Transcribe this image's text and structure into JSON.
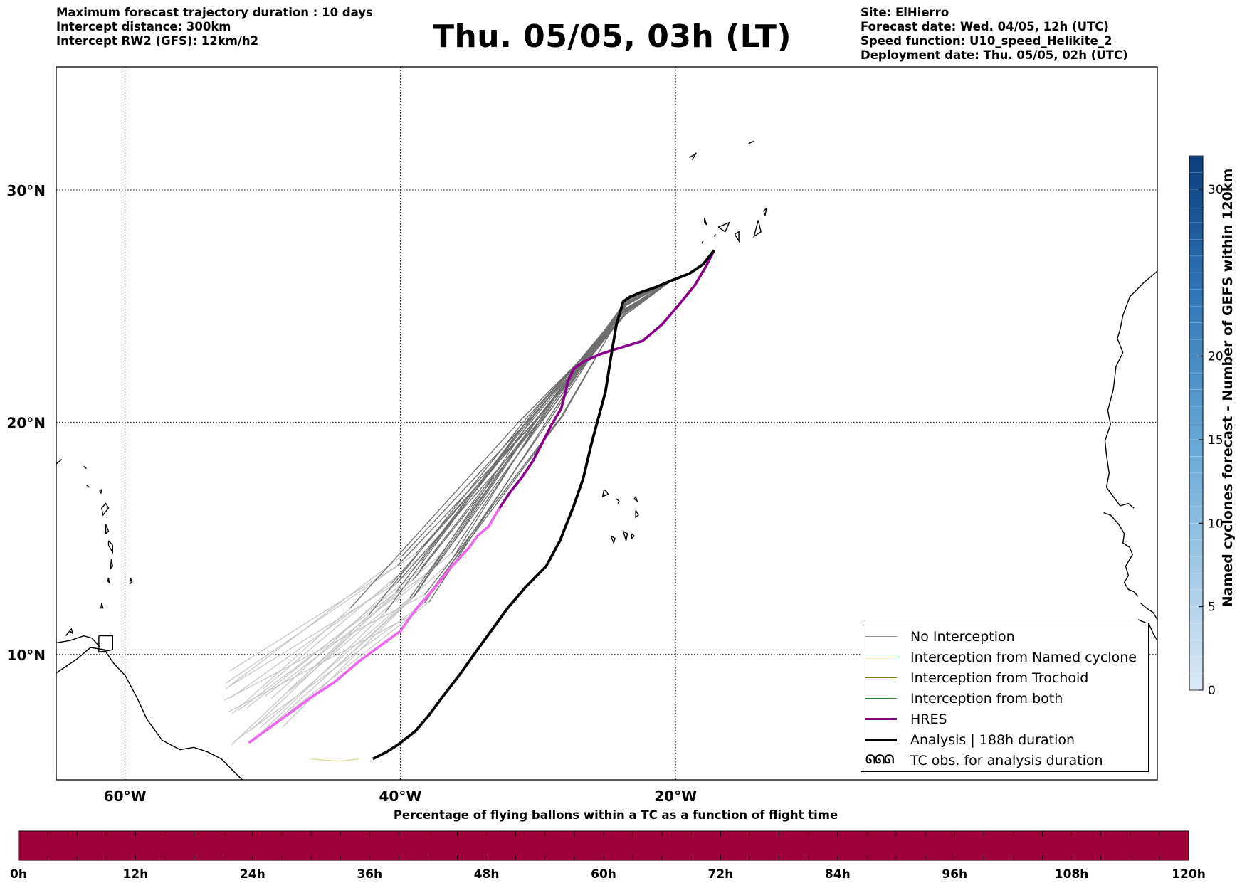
{
  "header_left": {
    "duration": "Maximum forecast trajectory duration : 10 days",
    "distance": "Intercept distance: 300km",
    "rw2": "Intercept RW2 (GFS):  12km/h2"
  },
  "title": "Thu. 05/05, 03h (LT)",
  "header_right": {
    "site": "Site: ElHierro",
    "forecast_date": "Forecast date: Wed. 04/05, 12h (UTC)",
    "speed_function": "Speed function: U10_speed_Helikite_2",
    "deployment_date": "Deployment date: Thu. 05/05, 02h (UTC)"
  },
  "map": {
    "lon_range": [
      -65,
      15
    ],
    "lat_range": [
      4.6,
      35.3
    ],
    "meridians": [
      -60,
      -40,
      -20
    ],
    "meridian_labels": [
      "60°W",
      "40°W",
      "20°W"
    ],
    "parallels": [
      30,
      20,
      10
    ],
    "parallel_labels": [
      "30°N",
      "20°N",
      "10°N"
    ],
    "grid": "dotted"
  },
  "tracks": {
    "ensemble_color": "#6e6e6e",
    "faded_color": "#c8c8c8",
    "hres_color": "#8b008b",
    "hres_faded_color": "#ee66ee",
    "analysis_color": "#000000",
    "analysis": [
      [
        -17.2,
        27.4
      ],
      [
        -18.0,
        26.8
      ],
      [
        -19.0,
        26.4
      ],
      [
        -20.3,
        26.1
      ],
      [
        -21.5,
        25.8
      ],
      [
        -22.5,
        25.6
      ],
      [
        -23.3,
        25.4
      ],
      [
        -23.8,
        25.2
      ],
      [
        -24.3,
        24.2
      ],
      [
        -24.7,
        22.8
      ],
      [
        -25.1,
        21.3
      ],
      [
        -25.6,
        20.2
      ],
      [
        -26.1,
        19.1
      ],
      [
        -26.7,
        17.6
      ],
      [
        -27.4,
        16.4
      ],
      [
        -28.4,
        14.9
      ],
      [
        -29.4,
        13.8
      ],
      [
        -30.9,
        12.9
      ],
      [
        -32.2,
        12.0
      ],
      [
        -33.3,
        11.1
      ],
      [
        -34.4,
        10.2
      ],
      [
        -35.6,
        9.2
      ],
      [
        -36.9,
        8.2
      ],
      [
        -37.9,
        7.4
      ],
      [
        -38.9,
        6.7
      ],
      [
        -40.2,
        6.1
      ],
      [
        -41.0,
        5.8
      ],
      [
        -42.0,
        5.5
      ]
    ],
    "hres": [
      [
        -17.2,
        27.4
      ],
      [
        -17.8,
        26.7
      ],
      [
        -18.6,
        25.9
      ],
      [
        -19.7,
        25.1
      ],
      [
        -21.0,
        24.2
      ],
      [
        -22.4,
        23.5
      ],
      [
        -23.5,
        23.3
      ],
      [
        -24.6,
        23.1
      ],
      [
        -25.6,
        22.9
      ],
      [
        -26.7,
        22.6
      ],
      [
        -27.4,
        22.3
      ],
      [
        -27.8,
        21.8
      ],
      [
        -28.3,
        20.6
      ],
      [
        -29.0,
        19.9
      ],
      [
        -29.6,
        19.2
      ],
      [
        -30.4,
        18.3
      ],
      [
        -31.2,
        17.6
      ],
      [
        -32.0,
        17.0
      ],
      [
        -32.8,
        16.3
      ],
      [
        -33.6,
        15.5
      ],
      [
        -34.4,
        15.1
      ],
      [
        -35.0,
        14.6
      ],
      [
        -36.4,
        13.7
      ],
      [
        -37.6,
        12.8
      ],
      [
        -38.8,
        12.0
      ],
      [
        -40.0,
        11.0
      ],
      [
        -41.4,
        10.4
      ],
      [
        -43.0,
        9.7
      ],
      [
        -44.8,
        8.8
      ],
      [
        -46.6,
        8.1
      ],
      [
        -48.2,
        7.4
      ],
      [
        -49.6,
        6.8
      ],
      [
        -51.0,
        6.2
      ]
    ]
  },
  "legend": {
    "items": [
      {
        "label": "No Interception",
        "color": "#8c8c8c",
        "width": 1.3,
        "kind": "line"
      },
      {
        "label": "Interception from Named cyclone",
        "color": "#e8532b",
        "width": 1.3,
        "kind": "line"
      },
      {
        "label": "Interception from Trochoid",
        "color": "#808000",
        "width": 1.3,
        "kind": "line"
      },
      {
        "label": "Interception from both",
        "color": "#2e8b2e",
        "width": 1.3,
        "kind": "line"
      },
      {
        "label": "HRES",
        "color": "#8b008b",
        "width": 3.5,
        "kind": "line"
      },
      {
        "label": "Analysis | 188h duration",
        "color": "#000000",
        "width": 3.5,
        "kind": "line"
      },
      {
        "label": "TC obs. for analysis duration",
        "color": "#000000",
        "width": 0,
        "kind": "tc",
        "symbol": "ᘏᘏᘏ"
      }
    ]
  },
  "colorbar": {
    "label": "Named cyclones forecast - Number of GEFS within 120km",
    "min": 0,
    "max": 32,
    "ticks": [
      0,
      5,
      10,
      15,
      20,
      30
    ],
    "tick_labels": [
      "0",
      "5",
      "10",
      "15",
      "20",
      "30"
    ],
    "color_low": "#dce9f6",
    "color_high": "#0b3d7c"
  },
  "bottom_bar": {
    "title": "Percentage of flying ballons within a TC as a function of flight time",
    "color": "#9e0039",
    "labels": [
      "0h",
      "12h",
      "24h",
      "36h",
      "48h",
      "60h",
      "72h",
      "84h",
      "96h",
      "108h",
      "120h"
    ]
  }
}
